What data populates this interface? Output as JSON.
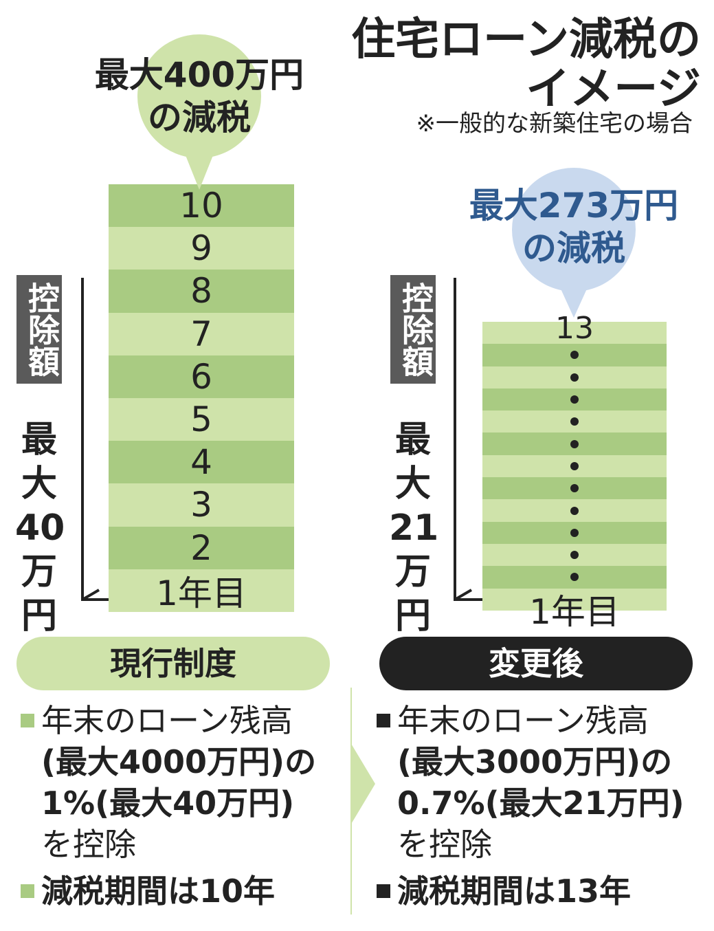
{
  "title": {
    "line1": "住宅ローン減税の",
    "line2": "イメージ"
  },
  "note": "※一般的な新築住宅の場合",
  "current": {
    "bubble": {
      "line1": "最大400万円",
      "line2": "の減税"
    },
    "tag": "控除額",
    "max_label": [
      "最",
      "大",
      "40",
      "万",
      "円"
    ],
    "rows": [
      "10",
      "9",
      "8",
      "7",
      "6",
      "5",
      "4",
      "3",
      "2",
      "1年目"
    ],
    "system_label": "現行制度",
    "desc": {
      "line1": "年末のローン残高",
      "line2": "(最大4000万円)の",
      "line3": "1%(最大40万円)",
      "line4": "を控除",
      "period": "減税期間は10年"
    }
  },
  "revised": {
    "bubble": {
      "line1": "最大273万円",
      "line2": "の減税"
    },
    "tag": "控除額",
    "max_label": [
      "最",
      "大",
      "21",
      "万",
      "円"
    ],
    "top_label": "13",
    "bottom_label": "1年目",
    "system_label": "変更後",
    "desc": {
      "line1": "年末のローン残高",
      "line2": "(最大3000万円)の",
      "line3": "0.7%(最大21万円)",
      "line4": "を控除",
      "period": "減税期間は13年"
    }
  },
  "colors": {
    "green_dark": "#a9cb82",
    "green_light": "#cfe3aa",
    "green_bubble": "#cfe3aa",
    "blue_bubble": "#c9d9ee",
    "blue_text": "#2f5a8f",
    "black_pill": "#222222"
  }
}
